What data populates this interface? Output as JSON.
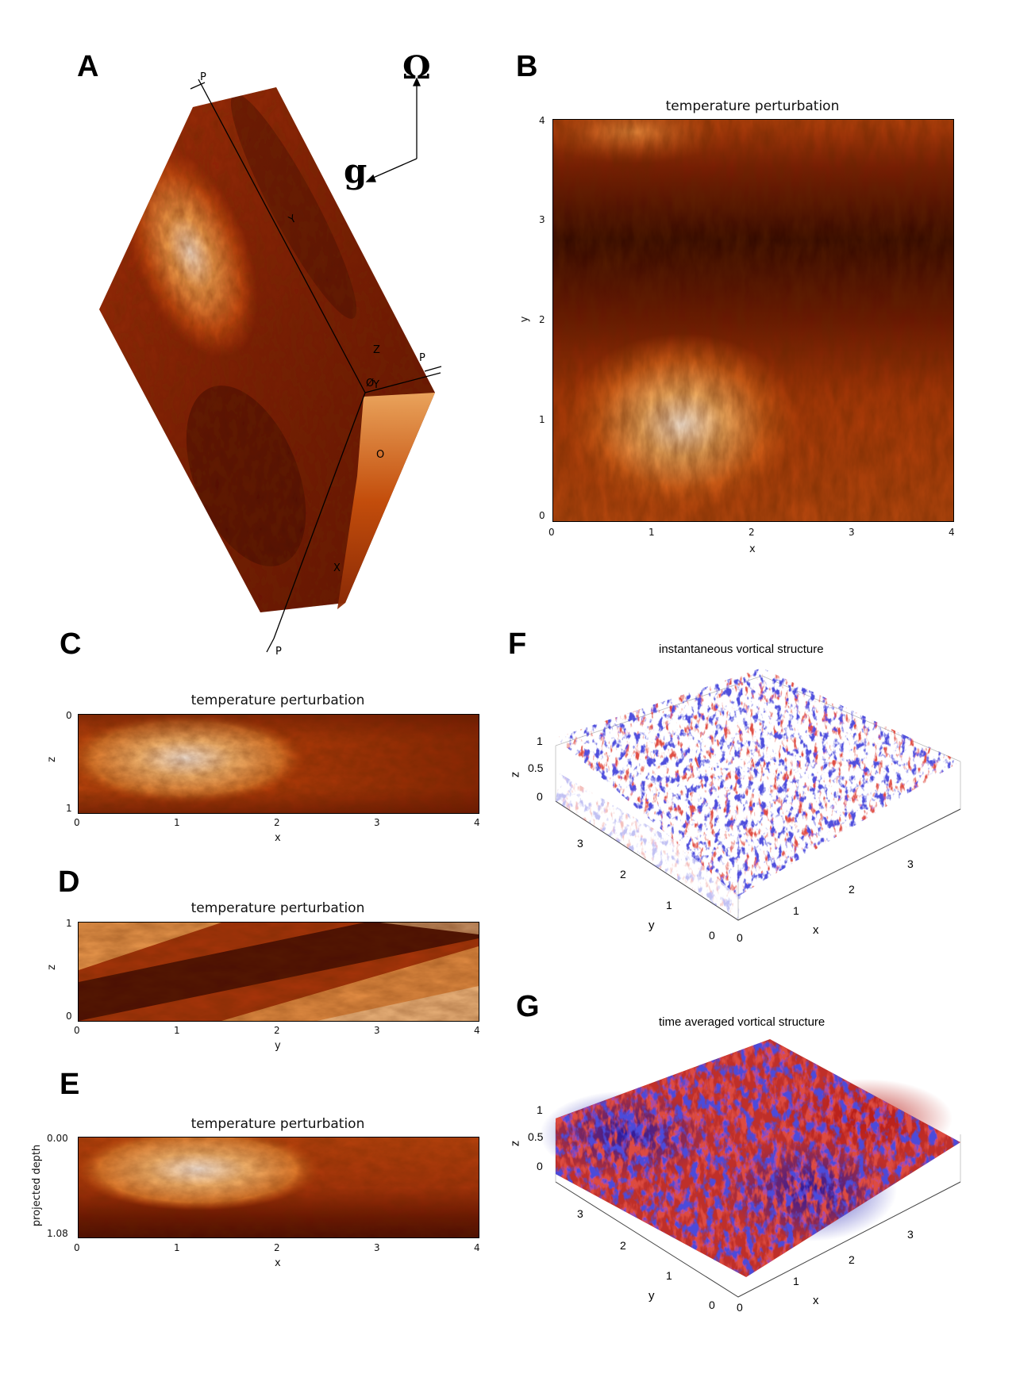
{
  "panels": {
    "a": {
      "label": "A",
      "omega": "Ω",
      "g": "g",
      "cube_labels": [
        "P",
        "Y",
        "P",
        "Z",
        "Y",
        "Ø",
        "O",
        "X",
        "P"
      ]
    },
    "b": {
      "label": "B",
      "title": "temperature perturbation",
      "xlabel": "x",
      "ylabel": "y",
      "xticks": [
        "0",
        "1",
        "2",
        "3",
        "4"
      ],
      "yticks": [
        "0",
        "1",
        "2",
        "3",
        "4"
      ]
    },
    "c": {
      "label": "C",
      "title": "temperature perturbation",
      "xlabel": "x",
      "ylabel": "z",
      "xticks": [
        "0",
        "1",
        "2",
        "3",
        "4"
      ],
      "yticks": [
        "0",
        "1"
      ]
    },
    "d": {
      "label": "D",
      "title": "temperature perturbation",
      "xlabel": "y",
      "ylabel": "z",
      "xticks": [
        "0",
        "1",
        "2",
        "3",
        "4"
      ],
      "yticks": [
        "1",
        "0"
      ]
    },
    "e": {
      "label": "E",
      "title": "temperature perturbation",
      "xlabel": "x",
      "ylabel": "projected depth",
      "xticks": [
        "0",
        "1",
        "2",
        "3",
        "4"
      ],
      "yticks": [
        "0.00",
        "1.08"
      ]
    },
    "f": {
      "label": "F",
      "title": "instantaneous vortical structure",
      "zticks": [
        "1",
        "0.5",
        "0"
      ],
      "yticks": [
        "3",
        "2",
        "1",
        "0"
      ],
      "xticks": [
        "0",
        "1",
        "2",
        "3"
      ],
      "zlabel": "z",
      "ylabel": "y",
      "xlabel": "x"
    },
    "g": {
      "label": "G",
      "title": "time averaged vortical structure",
      "zticks": [
        "1",
        "0.5",
        "0"
      ],
      "yticks": [
        "3",
        "2",
        "1",
        "0"
      ],
      "xticks": [
        "0",
        "1",
        "2",
        "3"
      ],
      "zlabel": "z",
      "ylabel": "y",
      "xlabel": "x"
    }
  },
  "colors": {
    "hot_dark": "#2a0400",
    "hot_mid": "#b83a08",
    "hot_bright": "#fff2e4",
    "vortex_positive": "#c01a14",
    "vortex_negative": "#1a1ab8"
  }
}
